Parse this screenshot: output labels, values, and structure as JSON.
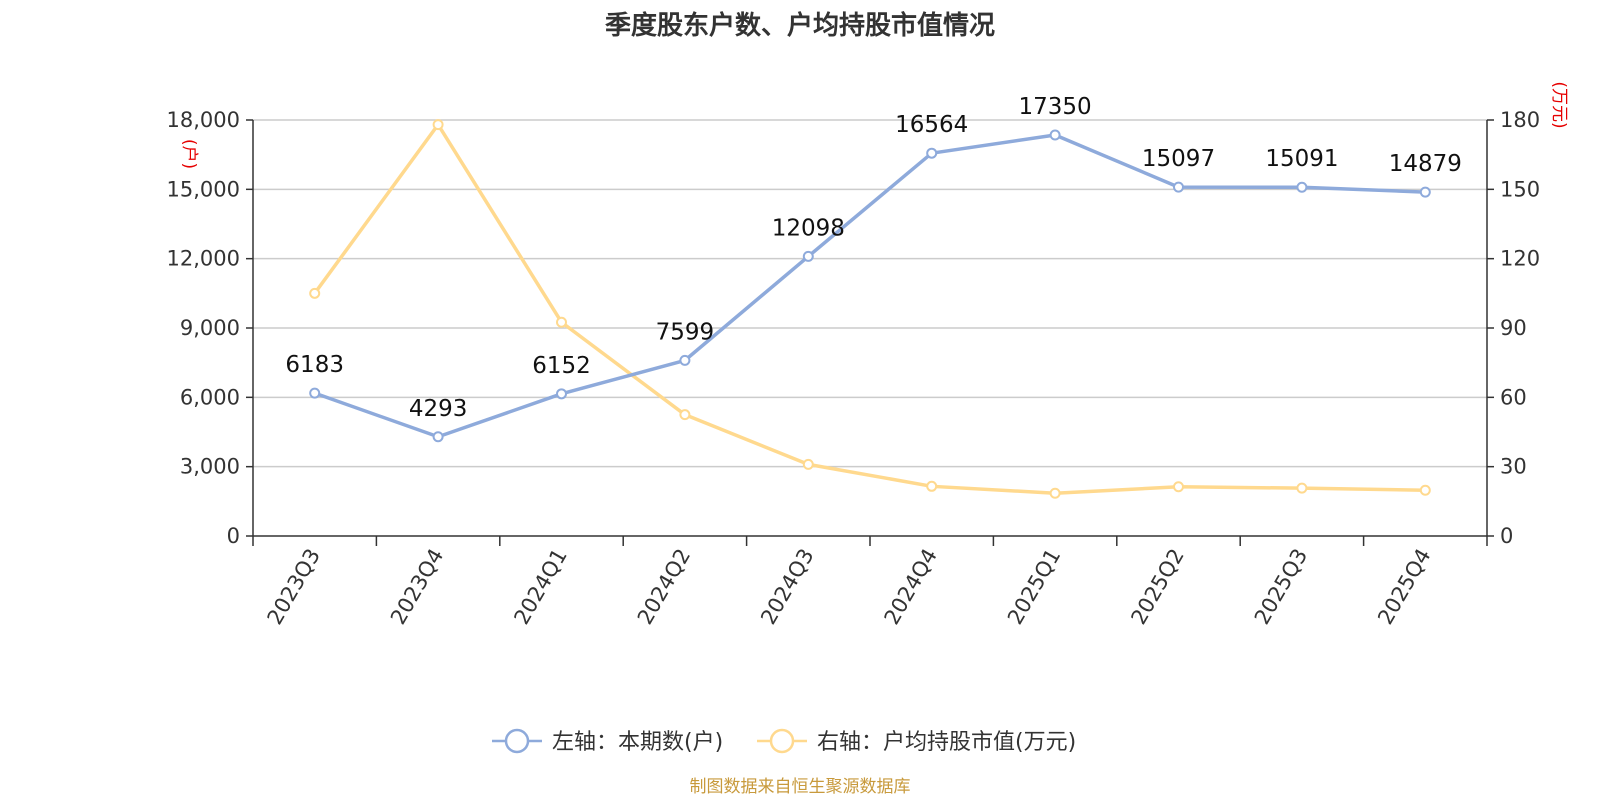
{
  "chart_data": {
    "type": "line",
    "title": "季度股东户数、户均持股市值情况",
    "categories": [
      "2023Q3",
      "2023Q4",
      "2024Q1",
      "2024Q2",
      "2024Q3",
      "2024Q4",
      "2025Q1",
      "2025Q2",
      "2025Q3",
      "2025Q4"
    ],
    "left_axis": {
      "unit": "(户)",
      "range": [
        0,
        18000
      ],
      "ticks": [
        0,
        3000,
        6000,
        9000,
        12000,
        15000,
        18000
      ],
      "tick_labels": [
        "0",
        "3,000",
        "6,000",
        "9,000",
        "12,000",
        "15,000",
        "18,000"
      ]
    },
    "right_axis": {
      "unit": "(万元)",
      "range": [
        0,
        180
      ],
      "ticks": [
        0,
        30,
        60,
        90,
        120,
        150,
        180
      ],
      "tick_labels": [
        "0",
        "30",
        "60",
        "90",
        "120",
        "150",
        "180"
      ]
    },
    "series": [
      {
        "name": "左轴：本期数(户)",
        "axis": "left",
        "color": "#8eaadb",
        "values": [
          6183,
          4293,
          6152,
          7599,
          12098,
          16564,
          17350,
          15097,
          15091,
          14879
        ],
        "data_labels": [
          "6183",
          "4293",
          "6152",
          "7599",
          "12098",
          "16564",
          "17350",
          "15097",
          "15091",
          "14879"
        ]
      },
      {
        "name": "右轴：户均持股市值(万元)",
        "axis": "right",
        "color": "#ffd98e",
        "values": [
          105,
          178,
          92.5,
          52.5,
          31,
          21.5,
          18.5,
          21.3,
          20.7,
          19.8
        ]
      }
    ],
    "grid": true,
    "legend_position": "bottom-center"
  },
  "colors": {
    "unit_text": "#e60000",
    "source_text": "#c89a3c",
    "axis": "#333333",
    "grid": "#cccccc"
  },
  "source": "制图数据来自恒生聚源数据库"
}
